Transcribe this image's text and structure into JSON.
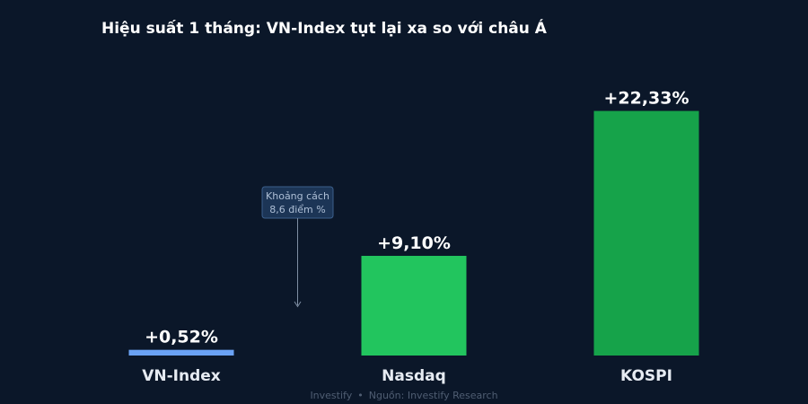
{
  "title": "Hiệu suất 1 tháng: VN-Index tụt lại xa so với châu Á",
  "chart_data": {
    "type": "bar",
    "categories": [
      "VN-Index",
      "Nasdaq",
      "KOSPI"
    ],
    "values": [
      0.52,
      9.1,
      22.33
    ],
    "value_labels": [
      "+0,52%",
      "+9,10%",
      "+22,33%"
    ],
    "colors": [
      "#6aa2f4",
      "#22c55e",
      "#16a34a"
    ],
    "ylim": [
      0,
      25
    ],
    "grid": false,
    "annotation": {
      "lines": [
        "Khoảng cách",
        "8,6 điểm %"
      ]
    }
  },
  "footer": {
    "brand": "Investify",
    "separator": "•",
    "source": "Nguồn: Investify Research"
  }
}
